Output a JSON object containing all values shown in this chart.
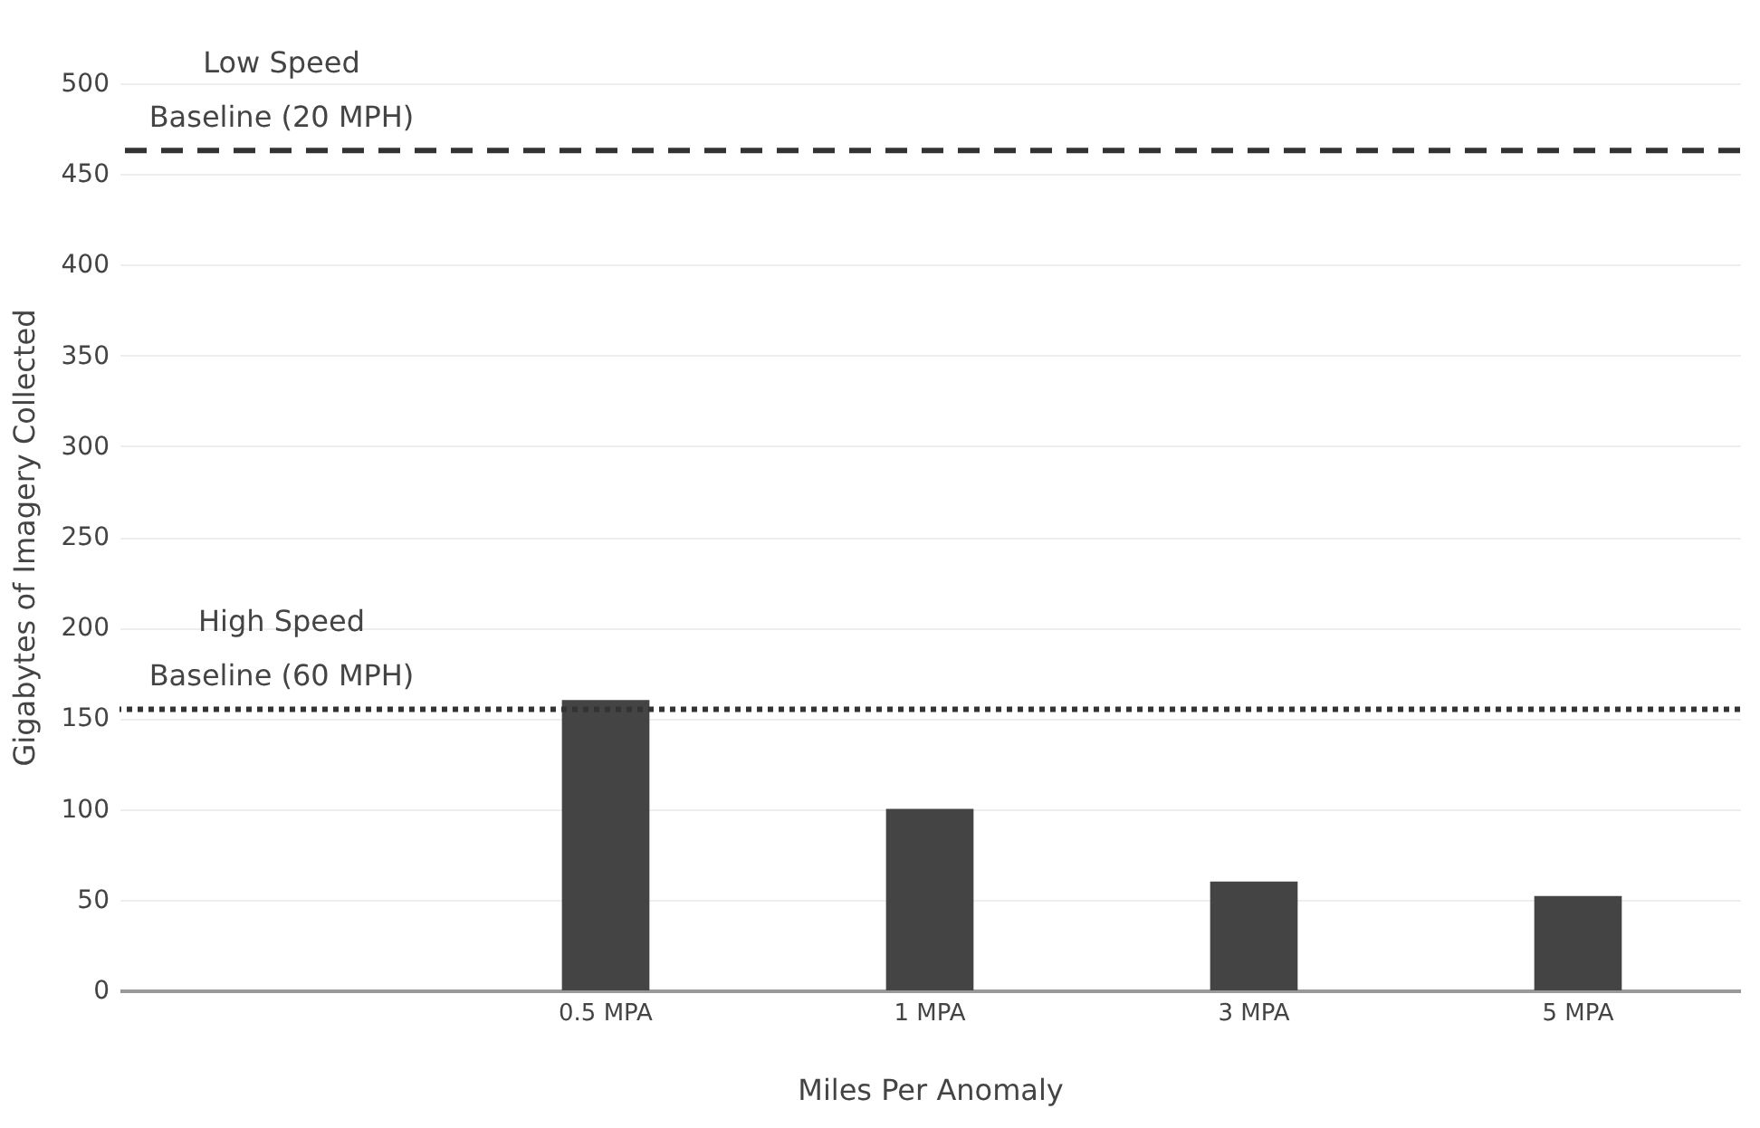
{
  "chart_data": {
    "type": "bar",
    "xlabel": "Miles Per Anomaly",
    "ylabel": "Gigabytes of Imagery Collected",
    "categories": [
      null,
      "0.5 MPA",
      "1 MPA",
      "3 MPA",
      "5 MPA"
    ],
    "values": [
      null,
      160,
      100,
      60,
      52
    ],
    "color": "#444444",
    "ylim": [
      0,
      500
    ],
    "yticks": [
      0,
      50,
      100,
      150,
      200,
      250,
      300,
      350,
      400,
      450,
      500
    ],
    "grid": "y",
    "ref_lines": [
      {
        "axis": "y",
        "value": 463,
        "label": "Low Speed\nBaseline (20 MPH)",
        "color": "#333333",
        "line_style": "dashed"
      },
      {
        "axis": "y",
        "value": 155,
        "label": "High Speed\nBaseline (60 MPH)",
        "color": "#333333",
        "line_style": "dotted"
      }
    ]
  }
}
